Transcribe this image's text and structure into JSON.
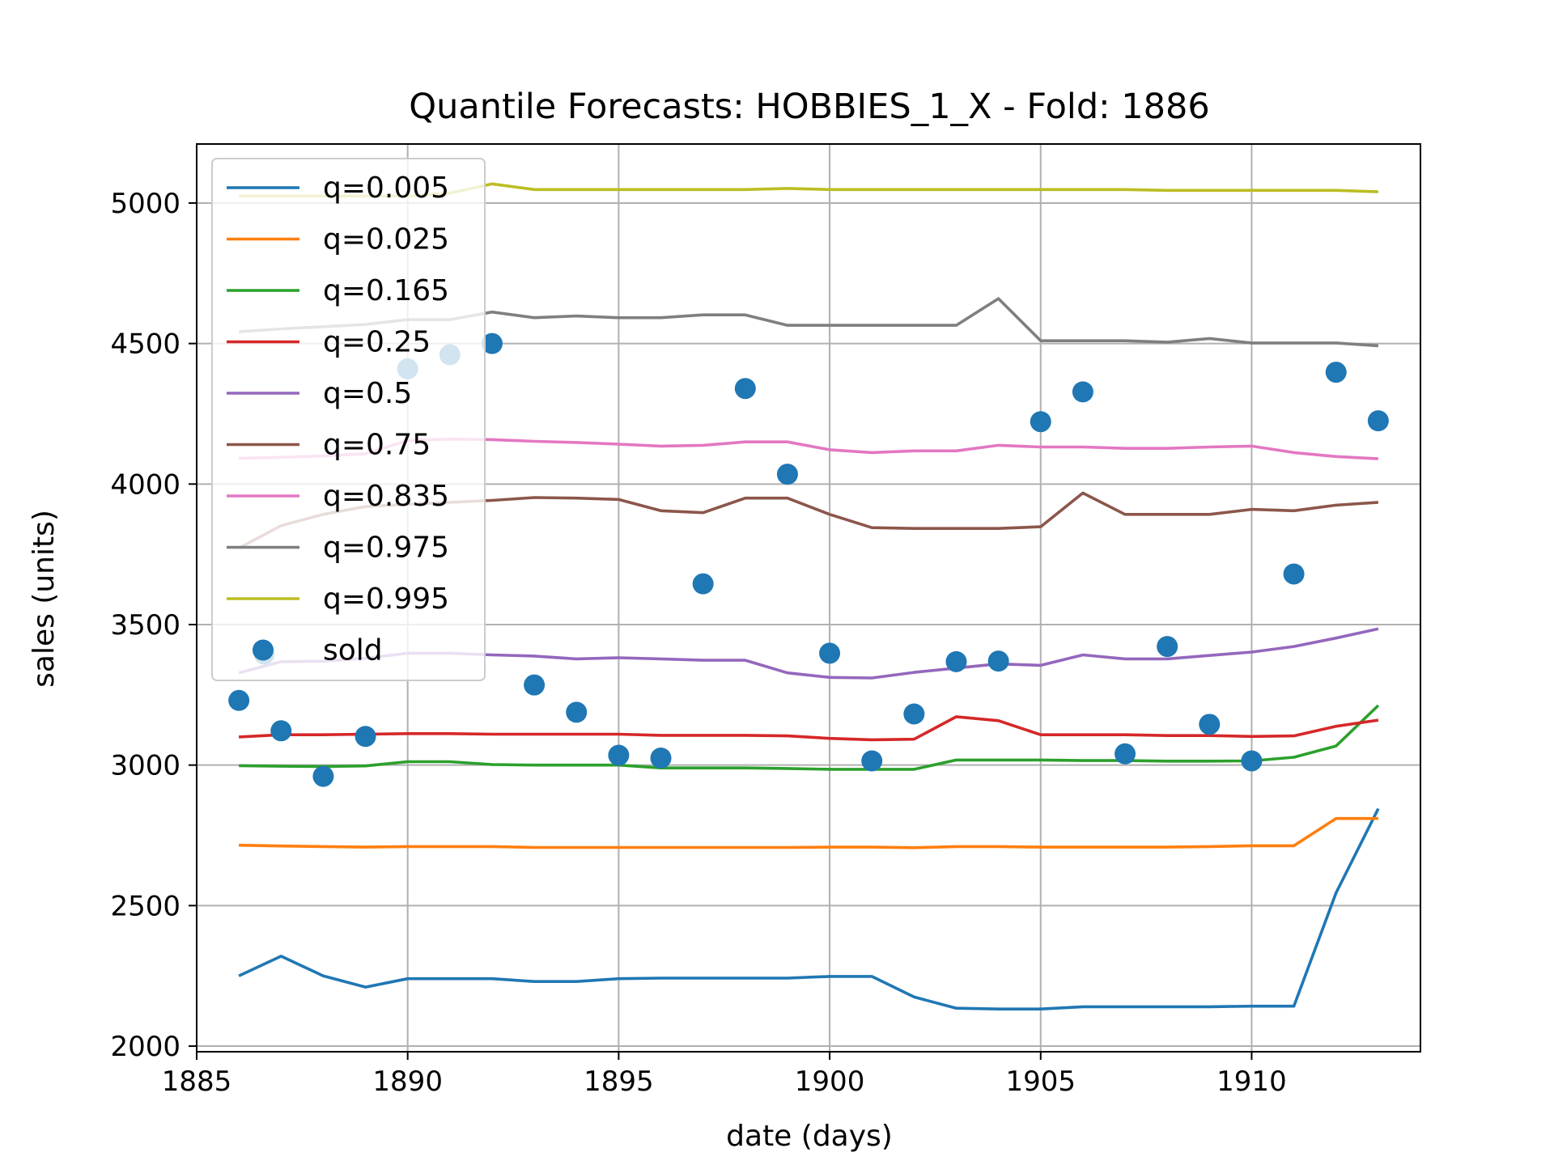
{
  "chart_data": {
    "type": "line",
    "title": "Quantile Forecasts: HOBBIES_1_X - Fold: 1886",
    "xlabel": "date (days)",
    "ylabel": "sales (units)",
    "xlim": [
      1885,
      1914
    ],
    "ylim": [
      1980,
      5210
    ],
    "xticks": [
      1885,
      1890,
      1895,
      1900,
      1905,
      1910
    ],
    "yticks": [
      2000,
      2500,
      3000,
      3500,
      4000,
      4500,
      5000
    ],
    "grid": true,
    "legend_position": "upper-left",
    "x": [
      1886,
      1887,
      1888,
      1889,
      1890,
      1891,
      1892,
      1893,
      1894,
      1895,
      1896,
      1897,
      1898,
      1899,
      1900,
      1901,
      1902,
      1903,
      1904,
      1905,
      1906,
      1907,
      1908,
      1909,
      1910,
      1911,
      1912,
      1913
    ],
    "series": [
      {
        "name": "q=0.005",
        "color": "#1f77b4",
        "values": [
          2250,
          2320,
          2250,
          2210,
          2240,
          2240,
          2240,
          2230,
          2230,
          2240,
          2242,
          2242,
          2242,
          2242,
          2248,
          2248,
          2175,
          2135,
          2132,
          2132,
          2140,
          2140,
          2140,
          2140,
          2142,
          2142,
          2545,
          2845
        ]
      },
      {
        "name": "q=0.025",
        "color": "#ff7f0e",
        "values": [
          2715,
          2712,
          2710,
          2708,
          2710,
          2710,
          2710,
          2707,
          2707,
          2707,
          2707,
          2707,
          2707,
          2707,
          2708,
          2708,
          2706,
          2710,
          2710,
          2708,
          2708,
          2708,
          2708,
          2710,
          2713,
          2713,
          2810,
          2810
        ]
      },
      {
        "name": "q=0.165",
        "color": "#2ca02c",
        "values": [
          2998,
          2996,
          2995,
          2997,
          3012,
          3012,
          3002,
          3000,
          3000,
          3000,
          2990,
          2990,
          2990,
          2988,
          2985,
          2985,
          2985,
          3018,
          3018,
          3018,
          3016,
          3016,
          3014,
          3014,
          3015,
          3028,
          3068,
          3212
        ]
      },
      {
        "name": "q=0.25",
        "color": "#d62728",
        "values": [
          3100,
          3108,
          3108,
          3110,
          3112,
          3112,
          3110,
          3110,
          3110,
          3110,
          3106,
          3106,
          3106,
          3104,
          3095,
          3090,
          3092,
          3172,
          3158,
          3108,
          3108,
          3108,
          3105,
          3105,
          3102,
          3104,
          3138,
          3160
        ]
      },
      {
        "name": "q=0.5",
        "color": "#9467bd",
        "values": [
          3328,
          3368,
          3370,
          3380,
          3398,
          3398,
          3392,
          3388,
          3378,
          3382,
          3378,
          3373,
          3373,
          3328,
          3312,
          3310,
          3330,
          3345,
          3360,
          3355,
          3392,
          3378,
          3378,
          3390,
          3402,
          3422,
          3452,
          3485
        ]
      },
      {
        "name": "q=0.75",
        "color": "#8c564b",
        "values": [
          3772,
          3852,
          3892,
          3920,
          3928,
          3935,
          3942,
          3952,
          3950,
          3945,
          3905,
          3898,
          3950,
          3950,
          3892,
          3845,
          3842,
          3842,
          3842,
          3848,
          3968,
          3892,
          3892,
          3892,
          3910,
          3905,
          3925,
          3935
        ]
      },
      {
        "name": "q=0.835",
        "color": "#e377c2",
        "values": [
          4092,
          4095,
          4100,
          4108,
          4155,
          4160,
          4158,
          4152,
          4148,
          4142,
          4135,
          4138,
          4150,
          4150,
          4122,
          4112,
          4118,
          4118,
          4138,
          4132,
          4132,
          4127,
          4127,
          4132,
          4135,
          4112,
          4098,
          4090
        ]
      },
      {
        "name": "q=0.975",
        "color": "#7f7f7f",
        "values": [
          4542,
          4552,
          4560,
          4568,
          4585,
          4585,
          4612,
          4592,
          4598,
          4592,
          4592,
          4602,
          4602,
          4565,
          4565,
          4565,
          4565,
          4565,
          4660,
          4510,
          4510,
          4510,
          4505,
          4518,
          4502,
          4502,
          4502,
          4492
        ]
      },
      {
        "name": "q=0.995",
        "color": "#bcbd22",
        "values": [
          5025,
          5025,
          5025,
          5025,
          5025,
          5035,
          5068,
          5048,
          5048,
          5048,
          5048,
          5048,
          5048,
          5052,
          5048,
          5048,
          5048,
          5048,
          5048,
          5048,
          5048,
          5048,
          5045,
          5045,
          5045,
          5045,
          5045,
          5040
        ]
      }
    ],
    "scatter": {
      "name": "sold",
      "color": "#1f77b4",
      "points": [
        [
          1886,
          3230
        ],
        [
          1886.6,
          3395
        ],
        [
          1887,
          3122
        ],
        [
          1888,
          2960
        ],
        [
          1889,
          3102
        ],
        [
          1890,
          4410
        ],
        [
          1891,
          4460
        ],
        [
          1892,
          4500
        ],
        [
          1893,
          3285
        ],
        [
          1894,
          3188
        ],
        [
          1895,
          3035
        ],
        [
          1896,
          3025
        ],
        [
          1897,
          3645
        ],
        [
          1898,
          4340
        ],
        [
          1899,
          4035
        ],
        [
          1900,
          3398
        ],
        [
          1901,
          3015
        ],
        [
          1902,
          3182
        ],
        [
          1903,
          3368
        ],
        [
          1904,
          3370
        ],
        [
          1905,
          4222
        ],
        [
          1906,
          4328
        ],
        [
          1907,
          3040
        ],
        [
          1908,
          3422
        ],
        [
          1909,
          3145
        ],
        [
          1910,
          3015
        ],
        [
          1911,
          3680
        ],
        [
          1912,
          4398
        ],
        [
          1913,
          4225
        ]
      ]
    }
  }
}
